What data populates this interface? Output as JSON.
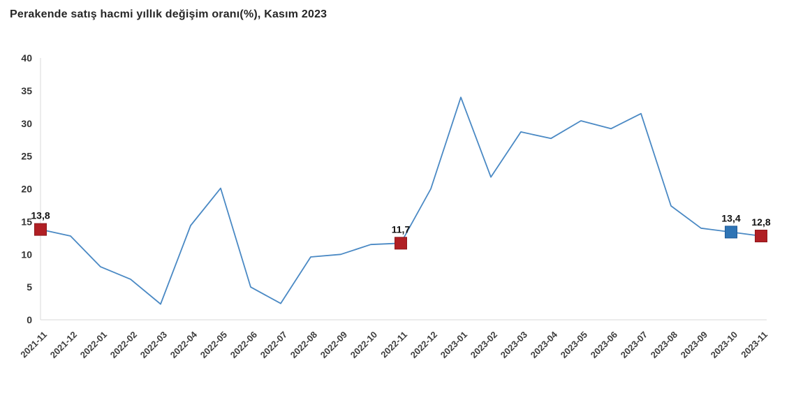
{
  "title": "Perakende satış hacmi yıllık değişim oranı(%), Kasım 2023",
  "chart_data": {
    "type": "line",
    "title": "Perakende satış hacmi yıllık değişim oranı(%), Kasım 2023",
    "xlabel": "",
    "ylabel": "",
    "ylim": [
      0,
      40
    ],
    "ytick_step": 5,
    "grid": false,
    "legend": "none",
    "x": [
      "2021-11",
      "2021-12",
      "2022-01",
      "2022-02",
      "2022-03",
      "2022-04",
      "2022-05",
      "2022-06",
      "2022-07",
      "2022-08",
      "2022-09",
      "2022-10",
      "2022-11",
      "2022-12",
      "2023-01",
      "2023-02",
      "2023-03",
      "2023-04",
      "2023-05",
      "2023-06",
      "2023-07",
      "2023-08",
      "2023-09",
      "2023-10",
      "2023-11"
    ],
    "series": [
      {
        "name": "Perakende satış hacmi yıllık değişim oranı (%)",
        "values": [
          13.8,
          12.8,
          8.1,
          6.2,
          2.4,
          14.4,
          20.1,
          5.0,
          2.5,
          9.6,
          10.0,
          11.5,
          11.7,
          20.0,
          34.0,
          21.8,
          28.7,
          27.7,
          30.4,
          29.2,
          31.5,
          17.4,
          14.0,
          13.4,
          12.8
        ]
      }
    ],
    "labeled_points": [
      {
        "x": "2021-11",
        "value": 13.8,
        "label": "13,8",
        "marker_color": "#b01f24",
        "marker_border": "#8e191d"
      },
      {
        "x": "2022-11",
        "value": 11.7,
        "label": "11,7",
        "marker_color": "#b01f24",
        "marker_border": "#8e191d"
      },
      {
        "x": "2023-10",
        "value": 13.4,
        "label": "13,4",
        "marker_color": "#2e74b5",
        "marker_border": "#1f5a96"
      },
      {
        "x": "2023-11",
        "value": 12.8,
        "label": "12,8",
        "marker_color": "#b01f24",
        "marker_border": "#8e191d"
      }
    ],
    "colors": {
      "line": "#4a89c4",
      "axis": "#d9d9d9",
      "tick_text": "#333333",
      "point_label_text": "#111111",
      "title_text": "#262626"
    }
  }
}
